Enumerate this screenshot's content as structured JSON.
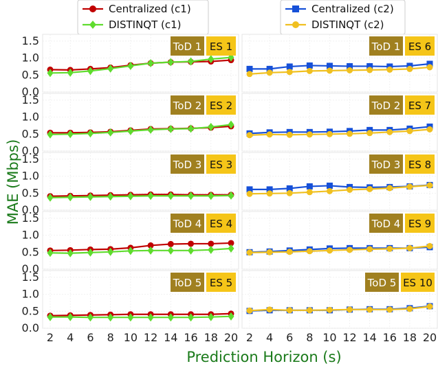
{
  "figure": {
    "xlabel": "Prediction Horizon (s)",
    "ylabel": "MAE (Mbps)",
    "colors": {
      "c1_central": "#c00000",
      "c1_distinqt": "#5fdc2e",
      "c2_central": "#1650d8",
      "c2_distinqt": "#f0c020",
      "tod_badge": "#a08020",
      "es_badge": "#f5c518",
      "axis_label": "#1a7a1a"
    }
  },
  "legend_left": {
    "items": [
      {
        "label": "Centralized (c1)",
        "color": "#c00000",
        "marker": "circle"
      },
      {
        "label": "DISTINQT (c1)",
        "color": "#5fdc2e",
        "marker": "diamond"
      }
    ]
  },
  "legend_right": {
    "items": [
      {
        "label": "Centralized (c2)",
        "color": "#1650d8",
        "marker": "square"
      },
      {
        "label": "DISTINQT (c2)",
        "color": "#f0c020",
        "marker": "circle"
      }
    ]
  },
  "chart_data": [
    {
      "type": "line",
      "tod": "ToD 1",
      "es": "ES 1",
      "x": [
        2,
        4,
        6,
        8,
        10,
        12,
        14,
        16,
        18,
        20
      ],
      "ylim": [
        0,
        1.7
      ],
      "yticks": [
        0.0,
        0.5,
        1.0,
        1.5
      ],
      "series": [
        {
          "name": "Centralized (c1)",
          "values": [
            0.66,
            0.65,
            0.68,
            0.72,
            0.79,
            0.85,
            0.88,
            0.89,
            0.9,
            0.94
          ]
        },
        {
          "name": "DISTINQT (c1)",
          "values": [
            0.56,
            0.57,
            0.62,
            0.69,
            0.77,
            0.85,
            0.88,
            0.9,
            0.97,
            1.02
          ]
        }
      ]
    },
    {
      "type": "line",
      "tod": "ToD 1",
      "es": "ES 6",
      "x": [
        2,
        4,
        6,
        8,
        10,
        12,
        14,
        16,
        18,
        20
      ],
      "ylim": [
        0,
        1.7
      ],
      "yticks": [
        0.0,
        0.5,
        1.0,
        1.5
      ],
      "series": [
        {
          "name": "Centralized (c2)",
          "values": [
            0.68,
            0.68,
            0.75,
            0.78,
            0.77,
            0.76,
            0.76,
            0.75,
            0.77,
            0.83
          ]
        },
        {
          "name": "DISTINQT (c2)",
          "values": [
            0.53,
            0.57,
            0.59,
            0.62,
            0.63,
            0.64,
            0.65,
            0.66,
            0.68,
            0.73
          ]
        }
      ]
    },
    {
      "type": "line",
      "tod": "ToD 2",
      "es": "ES 2",
      "x": [
        2,
        4,
        6,
        8,
        10,
        12,
        14,
        16,
        18,
        20
      ],
      "ylim": [
        0,
        1.7
      ],
      "yticks": [
        0.0,
        0.5,
        1.0,
        1.5
      ],
      "series": [
        {
          "name": "Centralized (c1)",
          "values": [
            0.54,
            0.54,
            0.55,
            0.57,
            0.61,
            0.65,
            0.66,
            0.67,
            0.69,
            0.73
          ]
        },
        {
          "name": "DISTINQT (c1)",
          "values": [
            0.49,
            0.5,
            0.52,
            0.55,
            0.59,
            0.63,
            0.65,
            0.66,
            0.71,
            0.78
          ]
        }
      ]
    },
    {
      "type": "line",
      "tod": "ToD 2",
      "es": "ES 7",
      "x": [
        2,
        4,
        6,
        8,
        10,
        12,
        14,
        16,
        18,
        20
      ],
      "ylim": [
        0,
        1.7
      ],
      "yticks": [
        0.0,
        0.5,
        1.0,
        1.5
      ],
      "series": [
        {
          "name": "Centralized (c2)",
          "values": [
            0.52,
            0.55,
            0.56,
            0.56,
            0.57,
            0.59,
            0.62,
            0.62,
            0.66,
            0.72
          ]
        },
        {
          "name": "DISTINQT (c2)",
          "values": [
            0.47,
            0.49,
            0.48,
            0.49,
            0.5,
            0.51,
            0.53,
            0.56,
            0.59,
            0.64
          ]
        }
      ]
    },
    {
      "type": "line",
      "tod": "ToD 3",
      "es": "ES 3",
      "x": [
        2,
        4,
        6,
        8,
        10,
        12,
        14,
        16,
        18,
        20
      ],
      "ylim": [
        0,
        1.7
      ],
      "yticks": [
        0.0,
        0.5,
        1.0,
        1.5
      ],
      "series": [
        {
          "name": "Centralized (c1)",
          "values": [
            0.41,
            0.42,
            0.43,
            0.44,
            0.45,
            0.46,
            0.46,
            0.45,
            0.45,
            0.45
          ]
        },
        {
          "name": "DISTINQT (c1)",
          "values": [
            0.37,
            0.38,
            0.39,
            0.4,
            0.41,
            0.42,
            0.42,
            0.42,
            0.42,
            0.43
          ]
        }
      ]
    },
    {
      "type": "line",
      "tod": "ToD 3",
      "es": "ES 8",
      "x": [
        2,
        4,
        6,
        8,
        10,
        12,
        14,
        16,
        18,
        20
      ],
      "ylim": [
        0,
        1.7
      ],
      "yticks": [
        0.0,
        0.5,
        1.0,
        1.5
      ],
      "series": [
        {
          "name": "Centralized (c2)",
          "values": [
            0.61,
            0.61,
            0.64,
            0.7,
            0.72,
            0.68,
            0.67,
            0.68,
            0.7,
            0.74
          ]
        },
        {
          "name": "DISTINQT (c2)",
          "values": [
            0.48,
            0.49,
            0.5,
            0.53,
            0.56,
            0.6,
            0.62,
            0.65,
            0.69,
            0.73
          ]
        }
      ]
    },
    {
      "type": "line",
      "tod": "ToD 4",
      "es": "ES 4",
      "x": [
        2,
        4,
        6,
        8,
        10,
        12,
        14,
        16,
        18,
        20
      ],
      "ylim": [
        0,
        1.7
      ],
      "yticks": [
        0.0,
        0.5,
        1.0,
        1.5
      ],
      "series": [
        {
          "name": "Centralized (c1)",
          "values": [
            0.55,
            0.56,
            0.58,
            0.59,
            0.63,
            0.7,
            0.74,
            0.75,
            0.75,
            0.77
          ]
        },
        {
          "name": "DISTINQT (c1)",
          "values": [
            0.48,
            0.47,
            0.49,
            0.51,
            0.54,
            0.55,
            0.55,
            0.55,
            0.57,
            0.61
          ]
        }
      ]
    },
    {
      "type": "line",
      "tod": "ToD 4",
      "es": "ES 9",
      "x": [
        2,
        4,
        6,
        8,
        10,
        12,
        14,
        16,
        18,
        20
      ],
      "ylim": [
        0,
        1.7
      ],
      "yticks": [
        0.0,
        0.5,
        1.0,
        1.5
      ],
      "series": [
        {
          "name": "Centralized (c2)",
          "values": [
            0.5,
            0.52,
            0.55,
            0.58,
            0.61,
            0.62,
            0.62,
            0.62,
            0.62,
            0.65
          ]
        },
        {
          "name": "DISTINQT (c2)",
          "values": [
            0.49,
            0.5,
            0.51,
            0.53,
            0.55,
            0.57,
            0.59,
            0.6,
            0.62,
            0.68
          ]
        }
      ]
    },
    {
      "type": "line",
      "tod": "ToD 5",
      "es": "ES 5",
      "x": [
        2,
        4,
        6,
        8,
        10,
        12,
        14,
        16,
        18,
        20
      ],
      "ylim": [
        0,
        1.7
      ],
      "yticks": [
        0.0,
        0.5,
        1.0,
        1.5
      ],
      "series": [
        {
          "name": "Centralized (c1)",
          "values": [
            0.37,
            0.38,
            0.39,
            0.4,
            0.41,
            0.41,
            0.41,
            0.41,
            0.41,
            0.43
          ]
        },
        {
          "name": "DISTINQT (c1)",
          "values": [
            0.33,
            0.33,
            0.32,
            0.32,
            0.32,
            0.32,
            0.32,
            0.32,
            0.33,
            0.35
          ]
        }
      ]
    },
    {
      "type": "line",
      "tod": "ToD 5",
      "es": "ES 10",
      "x": [
        2,
        4,
        6,
        8,
        10,
        12,
        14,
        16,
        18,
        20
      ],
      "ylim": [
        0,
        1.7
      ],
      "yticks": [
        0.0,
        0.5,
        1.0,
        1.5
      ],
      "series": [
        {
          "name": "Centralized (c2)",
          "values": [
            0.51,
            0.53,
            0.53,
            0.53,
            0.53,
            0.55,
            0.56,
            0.56,
            0.59,
            0.65
          ]
        },
        {
          "name": "DISTINQT (c2)",
          "values": [
            0.52,
            0.55,
            0.53,
            0.53,
            0.54,
            0.55,
            0.55,
            0.55,
            0.57,
            0.64
          ]
        }
      ]
    }
  ]
}
